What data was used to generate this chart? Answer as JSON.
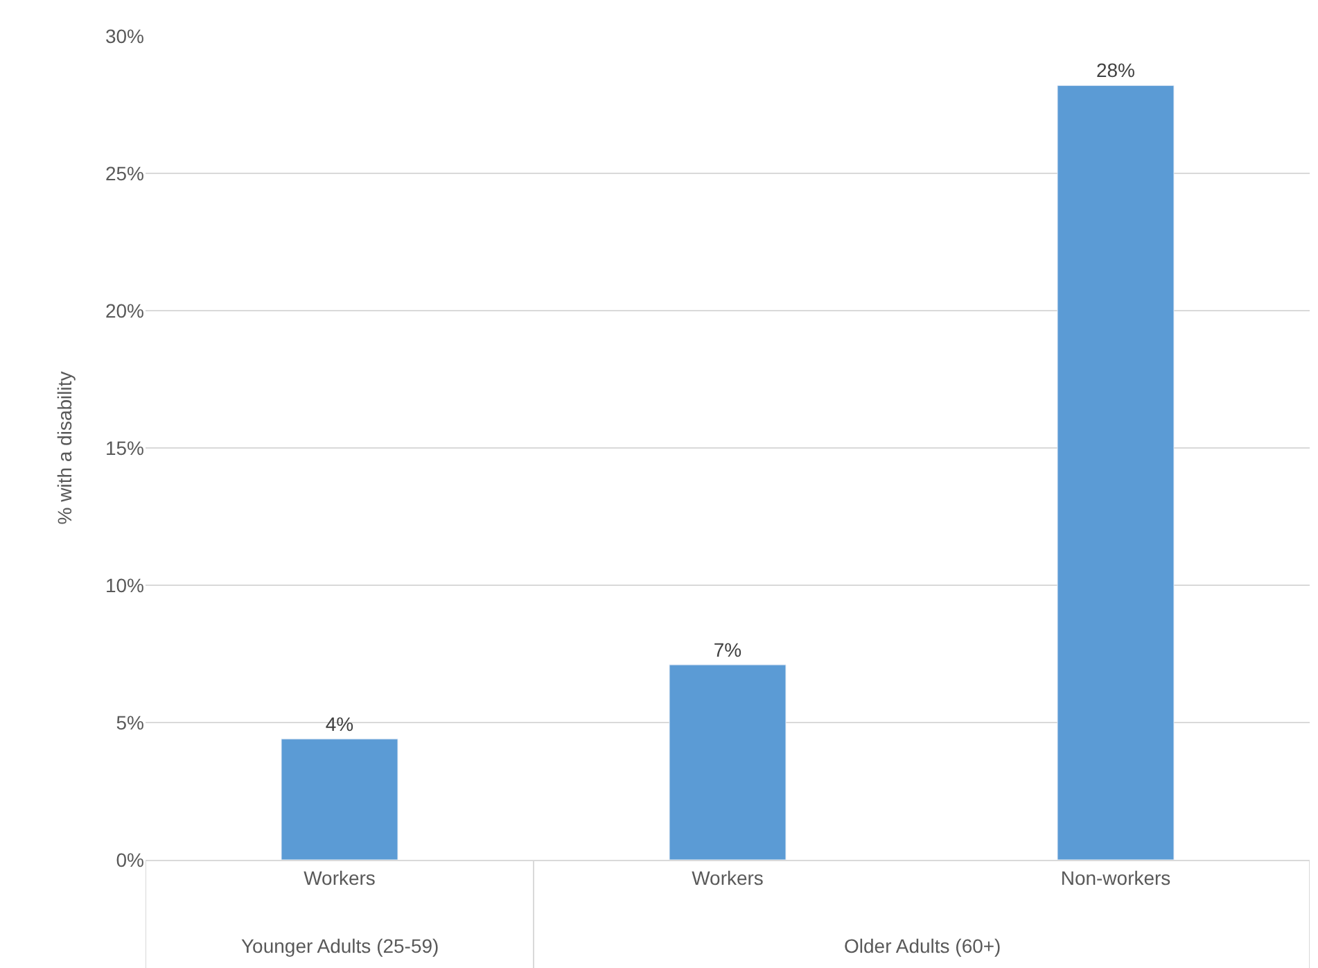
{
  "chart_data": {
    "type": "bar",
    "ylabel": "% with a disability",
    "categories": [
      "Workers",
      "Workers",
      "Non-workers"
    ],
    "values": [
      4.4,
      7.1,
      28.2
    ],
    "value_labels": [
      "4%",
      "7%",
      "28%"
    ],
    "color": "#5b9bd5",
    "ylim": [
      0,
      30
    ],
    "yticks": [
      {
        "value": 0,
        "label": "0%"
      },
      {
        "value": 5,
        "label": "5%"
      },
      {
        "value": 10,
        "label": "10%"
      },
      {
        "value": 15,
        "label": "15%"
      },
      {
        "value": 20,
        "label": "20%"
      },
      {
        "value": 25,
        "label": "25%"
      },
      {
        "value": 30,
        "label": "30%"
      }
    ],
    "grid": "y",
    "annotations": [
      "Younger Adults (25-59)",
      "Older Adults (60+)"
    ]
  }
}
